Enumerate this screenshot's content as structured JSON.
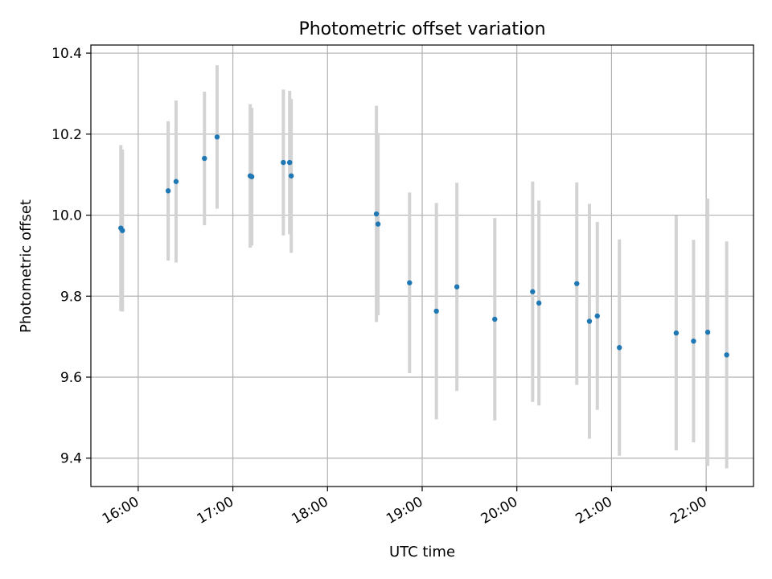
{
  "chart_data": {
    "type": "scatter",
    "title": "Photometric offset variation",
    "xlabel": "UTC time",
    "ylabel": "Photometric offset",
    "x_tick_labels": [
      "16:00",
      "17:00",
      "18:00",
      "19:00",
      "20:00",
      "21:00",
      "22:00"
    ],
    "y_tick_labels": [
      "9.4",
      "9.6",
      "9.8",
      "10.0",
      "10.2",
      "10.4"
    ],
    "y_ticks": [
      9.4,
      9.6,
      9.8,
      10.0,
      10.2,
      10.4
    ],
    "xlim": [
      "15:30",
      "22:30"
    ],
    "ylim": [
      9.33,
      10.42
    ],
    "grid": true,
    "colors": {
      "point": "#1f77b4",
      "error_bar": "#d3d3d3"
    },
    "points": [
      {
        "t": "15:49",
        "y": 9.968,
        "err": 0.205
      },
      {
        "t": "15:50",
        "y": 9.962,
        "err": 0.2
      },
      {
        "t": "16:19",
        "y": 10.06,
        "err": 0.172
      },
      {
        "t": "16:24",
        "y": 10.083,
        "err": 0.2
      },
      {
        "t": "16:42",
        "y": 10.14,
        "err": 0.165
      },
      {
        "t": "16:50",
        "y": 10.193,
        "err": 0.177
      },
      {
        "t": "17:11",
        "y": 10.097,
        "err": 0.177
      },
      {
        "t": "17:12",
        "y": 10.095,
        "err": 0.17
      },
      {
        "t": "17:32",
        "y": 10.13,
        "err": 0.18
      },
      {
        "t": "17:36",
        "y": 10.13,
        "err": 0.177
      },
      {
        "t": "17:37",
        "y": 10.097,
        "err": 0.19
      },
      {
        "t": "18:31",
        "y": 10.003,
        "err": 0.267
      },
      {
        "t": "18:32",
        "y": 9.978,
        "err": 0.225
      },
      {
        "t": "18:52",
        "y": 9.833,
        "err": 0.223
      },
      {
        "t": "19:09",
        "y": 9.763,
        "err": 0.267
      },
      {
        "t": "19:22",
        "y": 9.823,
        "err": 0.257
      },
      {
        "t": "19:46",
        "y": 9.743,
        "err": 0.25
      },
      {
        "t": "20:10",
        "y": 9.811,
        "err": 0.272
      },
      {
        "t": "20:14",
        "y": 9.783,
        "err": 0.253
      },
      {
        "t": "20:38",
        "y": 9.831,
        "err": 0.25
      },
      {
        "t": "20:46",
        "y": 9.738,
        "err": 0.29
      },
      {
        "t": "20:51",
        "y": 9.751,
        "err": 0.232
      },
      {
        "t": "21:05",
        "y": 9.673,
        "err": 0.267
      },
      {
        "t": "21:41",
        "y": 9.709,
        "err": 0.29
      },
      {
        "t": "21:52",
        "y": 9.689,
        "err": 0.25
      },
      {
        "t": "22:01",
        "y": 9.711,
        "err": 0.33
      },
      {
        "t": "22:13",
        "y": 9.655,
        "err": 0.28
      }
    ]
  }
}
